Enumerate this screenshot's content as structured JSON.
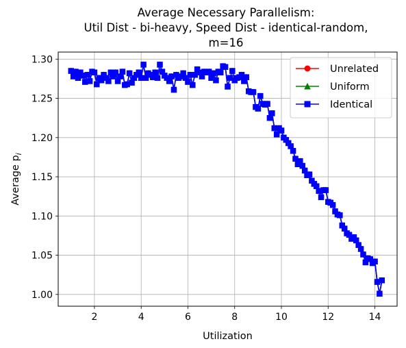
{
  "chart_data": {
    "type": "line",
    "title_lines": [
      "Average Necessary Parallelism:",
      "Util Dist - bi-heavy, Speed Dist - identical-random,",
      "m=16"
    ],
    "xlabel": "Utilization",
    "ylabel": "Average p",
    "ylabel_subscript": "i",
    "xlim": [
      0.45,
      14.95
    ],
    "ylim": [
      0.985,
      1.309
    ],
    "xticks": [
      2,
      4,
      6,
      8,
      10,
      12,
      14
    ],
    "yticks": [
      1.0,
      1.05,
      1.1,
      1.15,
      1.2,
      1.25,
      1.3
    ],
    "grid": true,
    "legend_position": "top-right",
    "series": [
      {
        "name": "Unrelated",
        "color": "#ff0000",
        "marker": "circle",
        "x": [
          1.0,
          1.1,
          1.2,
          1.3,
          1.4,
          1.5,
          1.6,
          1.7,
          1.8,
          1.9,
          2.0,
          2.1,
          2.2,
          2.3,
          2.4,
          2.5,
          2.6,
          2.7,
          2.8,
          2.9,
          3.0,
          3.1,
          3.2,
          3.3,
          3.4,
          3.5,
          3.6,
          3.7,
          3.8,
          3.9,
          4.0,
          4.1,
          4.2,
          4.3,
          4.4,
          4.5,
          4.6,
          4.7,
          4.8,
          4.9,
          5.0,
          5.1,
          5.2,
          5.3,
          5.4,
          5.5,
          5.6,
          5.7,
          5.8,
          5.9,
          6.0,
          6.1,
          6.2,
          6.3,
          6.4,
          6.5,
          6.6,
          6.7,
          6.8,
          6.9,
          7.0,
          7.1,
          7.2,
          7.3,
          7.4,
          7.5,
          7.6,
          7.7,
          7.8,
          7.9,
          8.0,
          8.1,
          8.2,
          8.3,
          8.4,
          8.5,
          8.6,
          8.7,
          8.8,
          8.9,
          9.0,
          9.1,
          9.2,
          9.3,
          9.4,
          9.5,
          9.6,
          9.7,
          9.8,
          9.9,
          10.0,
          10.1,
          10.2,
          10.3,
          10.4,
          10.5,
          10.6,
          10.7,
          10.8,
          10.9,
          11.0,
          11.1,
          11.2,
          11.3,
          11.4,
          11.5,
          11.6,
          11.7,
          11.8,
          11.9,
          12.0,
          12.1,
          12.2,
          12.3,
          12.4,
          12.5,
          12.6,
          12.7,
          12.8,
          12.9,
          13.0,
          13.1,
          13.2,
          13.3,
          13.4,
          13.5,
          13.6,
          13.7,
          13.8,
          13.9,
          14.0,
          14.1,
          14.2,
          14.3
        ],
        "y": [
          1.285,
          1.278,
          1.284,
          1.276,
          1.283,
          1.279,
          1.271,
          1.28,
          1.272,
          1.284,
          1.283,
          1.268,
          1.276,
          1.273,
          1.28,
          1.276,
          1.272,
          1.283,
          1.278,
          1.283,
          1.272,
          1.278,
          1.284,
          1.267,
          1.268,
          1.282,
          1.27,
          1.276,
          1.28,
          1.283,
          1.276,
          1.293,
          1.276,
          1.282,
          1.28,
          1.277,
          1.283,
          1.276,
          1.293,
          1.284,
          1.279,
          1.276,
          1.272,
          1.278,
          1.261,
          1.28,
          1.276,
          1.278,
          1.282,
          1.276,
          1.271,
          1.28,
          1.267,
          1.28,
          1.287,
          1.283,
          1.278,
          1.284,
          1.283,
          1.284,
          1.276,
          1.282,
          1.273,
          1.284,
          1.283,
          1.291,
          1.29,
          1.265,
          1.276,
          1.285,
          1.273,
          1.276,
          1.277,
          1.28,
          1.272,
          1.277,
          1.259,
          1.258,
          1.258,
          1.239,
          1.237,
          1.253,
          1.243,
          1.242,
          1.243,
          1.225,
          1.231,
          1.212,
          1.204,
          1.212,
          1.209,
          1.2,
          1.197,
          1.193,
          1.189,
          1.183,
          1.173,
          1.166,
          1.17,
          1.164,
          1.158,
          1.152,
          1.153,
          1.145,
          1.141,
          1.138,
          1.132,
          1.124,
          1.133,
          1.133,
          1.118,
          1.117,
          1.114,
          1.106,
          1.102,
          1.101,
          1.088,
          1.084,
          1.078,
          1.076,
          1.071,
          1.073,
          1.069,
          1.063,
          1.058,
          1.051,
          1.041,
          1.046,
          1.045,
          1.04,
          1.042,
          1.016,
          1.001,
          1.018
        ]
      },
      {
        "name": "Uniform",
        "color": "#008000",
        "marker": "triangle",
        "x": [
          1.0,
          1.1,
          1.2,
          1.3,
          1.4,
          1.5,
          1.6,
          1.7,
          1.8,
          1.9,
          2.0,
          2.1,
          2.2,
          2.3,
          2.4,
          2.5,
          2.6,
          2.7,
          2.8,
          2.9,
          3.0,
          3.1,
          3.2,
          3.3,
          3.4,
          3.5,
          3.6,
          3.7,
          3.8,
          3.9,
          4.0,
          4.1,
          4.2,
          4.3,
          4.4,
          4.5,
          4.6,
          4.7,
          4.8,
          4.9,
          5.0,
          5.1,
          5.2,
          5.3,
          5.4,
          5.5,
          5.6,
          5.7,
          5.8,
          5.9,
          6.0,
          6.1,
          6.2,
          6.3,
          6.4,
          6.5,
          6.6,
          6.7,
          6.8,
          6.9,
          7.0,
          7.1,
          7.2,
          7.3,
          7.4,
          7.5,
          7.6,
          7.7,
          7.8,
          7.9,
          8.0,
          8.1,
          8.2,
          8.3,
          8.4,
          8.5,
          8.6,
          8.7,
          8.8,
          8.9,
          9.0,
          9.1,
          9.2,
          9.3,
          9.4,
          9.5,
          9.6,
          9.7,
          9.8,
          9.9,
          10.0,
          10.1,
          10.2,
          10.3,
          10.4,
          10.5,
          10.6,
          10.7,
          10.8,
          10.9,
          11.0,
          11.1,
          11.2,
          11.3,
          11.4,
          11.5,
          11.6,
          11.7,
          11.8,
          11.9,
          12.0,
          12.1,
          12.2,
          12.3,
          12.4,
          12.5,
          12.6,
          12.7,
          12.8,
          12.9,
          13.0,
          13.1,
          13.2,
          13.3,
          13.4,
          13.5,
          13.6,
          13.7,
          13.8,
          13.9,
          14.0,
          14.1,
          14.2,
          14.3
        ],
        "y": [
          1.285,
          1.278,
          1.284,
          1.276,
          1.283,
          1.279,
          1.271,
          1.28,
          1.272,
          1.284,
          1.283,
          1.268,
          1.276,
          1.273,
          1.28,
          1.276,
          1.272,
          1.283,
          1.278,
          1.283,
          1.272,
          1.278,
          1.284,
          1.267,
          1.268,
          1.282,
          1.27,
          1.276,
          1.28,
          1.283,
          1.276,
          1.293,
          1.276,
          1.282,
          1.28,
          1.277,
          1.283,
          1.276,
          1.293,
          1.284,
          1.279,
          1.276,
          1.272,
          1.278,
          1.261,
          1.28,
          1.276,
          1.278,
          1.282,
          1.276,
          1.271,
          1.28,
          1.267,
          1.28,
          1.287,
          1.283,
          1.278,
          1.284,
          1.283,
          1.284,
          1.276,
          1.282,
          1.273,
          1.284,
          1.283,
          1.291,
          1.29,
          1.265,
          1.276,
          1.285,
          1.273,
          1.276,
          1.277,
          1.28,
          1.272,
          1.277,
          1.259,
          1.258,
          1.258,
          1.239,
          1.237,
          1.253,
          1.243,
          1.242,
          1.243,
          1.225,
          1.231,
          1.212,
          1.204,
          1.212,
          1.209,
          1.2,
          1.197,
          1.193,
          1.189,
          1.183,
          1.173,
          1.166,
          1.17,
          1.164,
          1.158,
          1.152,
          1.153,
          1.145,
          1.141,
          1.138,
          1.132,
          1.124,
          1.133,
          1.133,
          1.118,
          1.117,
          1.114,
          1.106,
          1.102,
          1.101,
          1.088,
          1.084,
          1.078,
          1.076,
          1.071,
          1.073,
          1.069,
          1.063,
          1.058,
          1.051,
          1.041,
          1.046,
          1.045,
          1.04,
          1.042,
          1.016,
          1.001,
          1.018
        ]
      },
      {
        "name": "Identical",
        "color": "#0000ff",
        "marker": "square",
        "x": [
          1.0,
          1.1,
          1.2,
          1.3,
          1.4,
          1.5,
          1.6,
          1.7,
          1.8,
          1.9,
          2.0,
          2.1,
          2.2,
          2.3,
          2.4,
          2.5,
          2.6,
          2.7,
          2.8,
          2.9,
          3.0,
          3.1,
          3.2,
          3.3,
          3.4,
          3.5,
          3.6,
          3.7,
          3.8,
          3.9,
          4.0,
          4.1,
          4.2,
          4.3,
          4.4,
          4.5,
          4.6,
          4.7,
          4.8,
          4.9,
          5.0,
          5.1,
          5.2,
          5.3,
          5.4,
          5.5,
          5.6,
          5.7,
          5.8,
          5.9,
          6.0,
          6.1,
          6.2,
          6.3,
          6.4,
          6.5,
          6.6,
          6.7,
          6.8,
          6.9,
          7.0,
          7.1,
          7.2,
          7.3,
          7.4,
          7.5,
          7.6,
          7.7,
          7.8,
          7.9,
          8.0,
          8.1,
          8.2,
          8.3,
          8.4,
          8.5,
          8.6,
          8.7,
          8.8,
          8.9,
          9.0,
          9.1,
          9.2,
          9.3,
          9.4,
          9.5,
          9.6,
          9.7,
          9.8,
          9.9,
          10.0,
          10.1,
          10.2,
          10.3,
          10.4,
          10.5,
          10.6,
          10.7,
          10.8,
          10.9,
          11.0,
          11.1,
          11.2,
          11.3,
          11.4,
          11.5,
          11.6,
          11.7,
          11.8,
          11.9,
          12.0,
          12.1,
          12.2,
          12.3,
          12.4,
          12.5,
          12.6,
          12.7,
          12.8,
          12.9,
          13.0,
          13.1,
          13.2,
          13.3,
          13.4,
          13.5,
          13.6,
          13.7,
          13.8,
          13.9,
          14.0,
          14.1,
          14.2,
          14.3
        ],
        "y": [
          1.285,
          1.278,
          1.284,
          1.276,
          1.283,
          1.279,
          1.271,
          1.28,
          1.272,
          1.284,
          1.283,
          1.268,
          1.276,
          1.273,
          1.28,
          1.276,
          1.272,
          1.283,
          1.278,
          1.283,
          1.272,
          1.278,
          1.284,
          1.267,
          1.268,
          1.282,
          1.27,
          1.276,
          1.28,
          1.283,
          1.276,
          1.293,
          1.276,
          1.282,
          1.28,
          1.277,
          1.283,
          1.276,
          1.293,
          1.284,
          1.279,
          1.276,
          1.272,
          1.278,
          1.261,
          1.28,
          1.276,
          1.278,
          1.282,
          1.276,
          1.271,
          1.28,
          1.267,
          1.28,
          1.287,
          1.283,
          1.278,
          1.284,
          1.283,
          1.284,
          1.276,
          1.282,
          1.273,
          1.284,
          1.283,
          1.291,
          1.29,
          1.265,
          1.276,
          1.285,
          1.273,
          1.276,
          1.277,
          1.28,
          1.272,
          1.277,
          1.259,
          1.258,
          1.258,
          1.239,
          1.237,
          1.253,
          1.243,
          1.242,
          1.243,
          1.225,
          1.231,
          1.212,
          1.204,
          1.212,
          1.209,
          1.2,
          1.197,
          1.193,
          1.189,
          1.183,
          1.173,
          1.166,
          1.17,
          1.164,
          1.158,
          1.152,
          1.153,
          1.145,
          1.141,
          1.138,
          1.132,
          1.124,
          1.133,
          1.133,
          1.118,
          1.117,
          1.114,
          1.106,
          1.102,
          1.101,
          1.088,
          1.084,
          1.078,
          1.076,
          1.071,
          1.073,
          1.069,
          1.063,
          1.058,
          1.051,
          1.041,
          1.046,
          1.045,
          1.04,
          1.042,
          1.016,
          1.001,
          1.018
        ]
      }
    ]
  }
}
